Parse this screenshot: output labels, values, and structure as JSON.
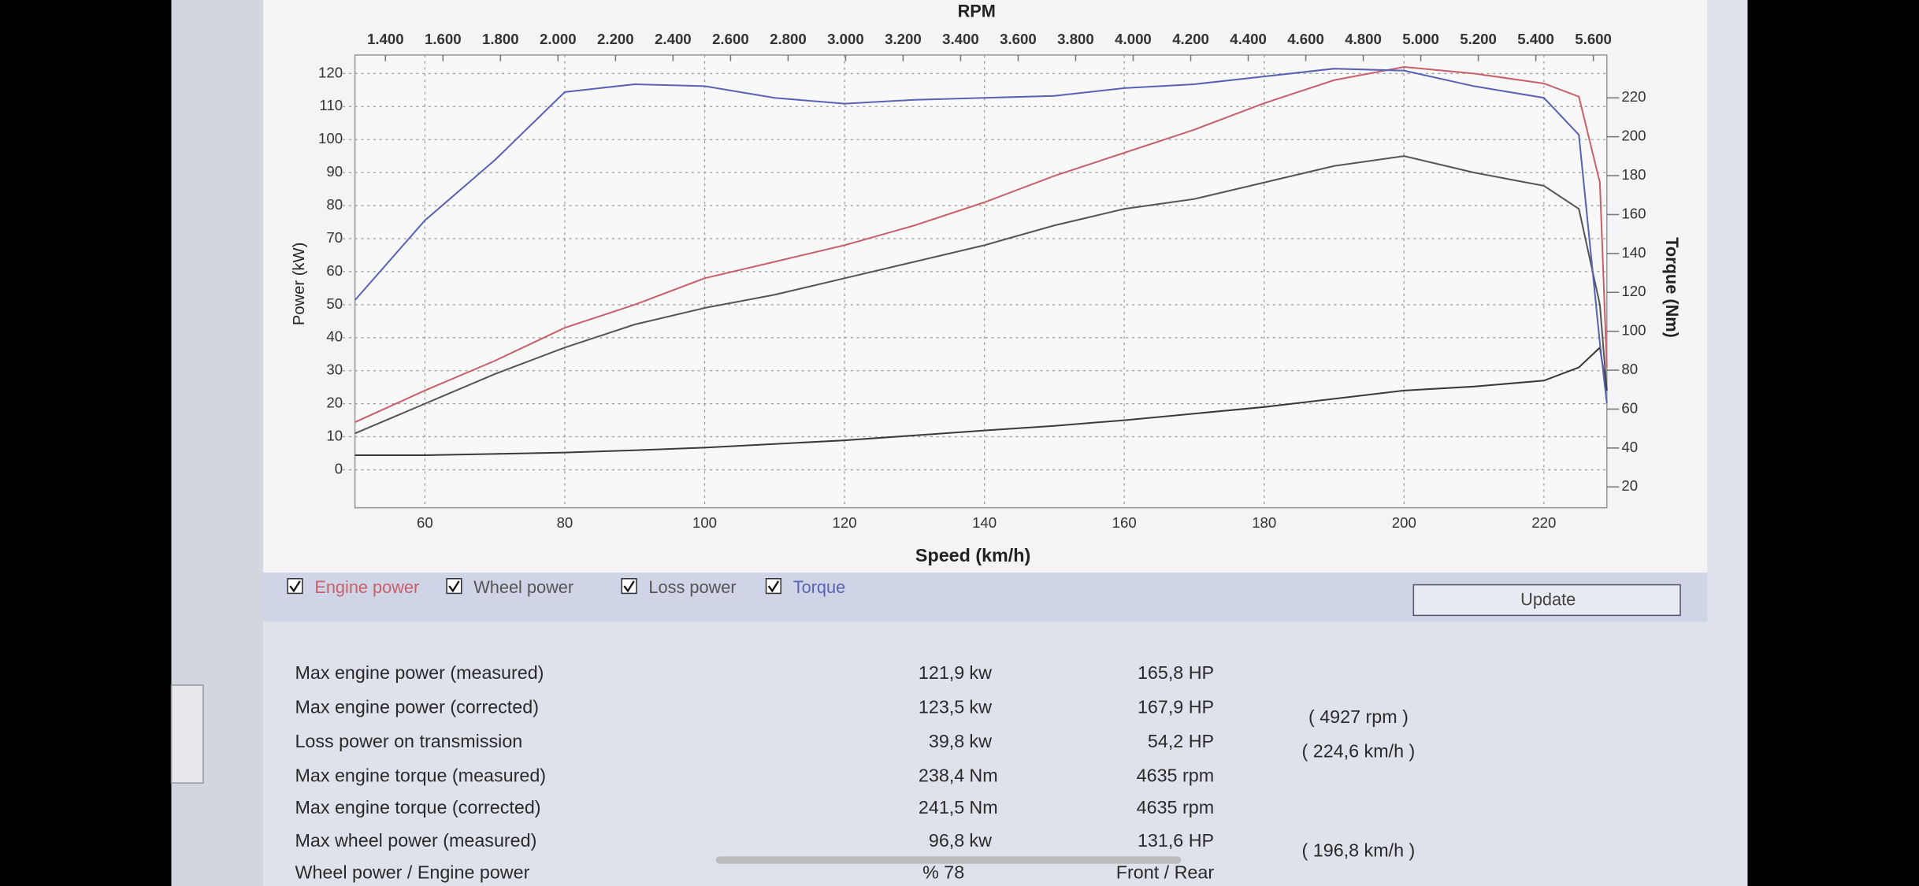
{
  "chart_data": {
    "type": "line",
    "x_label": "Speed (km/h)",
    "x2_label": "RPM",
    "y_label": "Power (kW)",
    "y2_label": "Torque (Nm)",
    "x": [
      50,
      60,
      70,
      80,
      90,
      100,
      110,
      120,
      130,
      140,
      150,
      160,
      170,
      180,
      190,
      200,
      210,
      220,
      225,
      228,
      229
    ],
    "xlim": [
      50,
      229
    ],
    "xticks": [
      60,
      80,
      100,
      120,
      140,
      160,
      180,
      200,
      220
    ],
    "x2lim": [
      1294,
      5647
    ],
    "x2ticks": [
      {
        "value": 1400,
        "label": "1.400"
      },
      {
        "value": 1600,
        "label": "1.600"
      },
      {
        "value": 1800,
        "label": "1.800"
      },
      {
        "value": 2000,
        "label": "2.000"
      },
      {
        "value": 2200,
        "label": "2.200"
      },
      {
        "value": 2400,
        "label": "2.400"
      },
      {
        "value": 2600,
        "label": "2.600"
      },
      {
        "value": 2800,
        "label": "2.800"
      },
      {
        "value": 3000,
        "label": "3.000"
      },
      {
        "value": 3200,
        "label": "3.200"
      },
      {
        "value": 3400,
        "label": "3.400"
      },
      {
        "value": 3600,
        "label": "3.600"
      },
      {
        "value": 3800,
        "label": "3.800"
      },
      {
        "value": 4000,
        "label": "4.000"
      },
      {
        "value": 4200,
        "label": "4.200"
      },
      {
        "value": 4400,
        "label": "4.400"
      },
      {
        "value": 4600,
        "label": "4.600"
      },
      {
        "value": 4800,
        "label": "4.800"
      },
      {
        "value": 5000,
        "label": "5.000"
      },
      {
        "value": 5200,
        "label": "5.200"
      },
      {
        "value": 5400,
        "label": "5.400"
      },
      {
        "value": 5600,
        "label": "5.600"
      }
    ],
    "ylim": [
      -11.5,
      125.6
    ],
    "yticks": [
      0,
      10,
      20,
      30,
      40,
      50,
      60,
      70,
      80,
      90,
      100,
      110,
      120
    ],
    "y2lim": [
      9.3,
      242
    ],
    "y2ticks": [
      20,
      40,
      60,
      80,
      100,
      120,
      140,
      160,
      180,
      200,
      220
    ],
    "grid": true,
    "series": [
      {
        "name": "Engine power",
        "color": "#c8606a",
        "values": [
          14.4,
          24,
          33,
          43,
          50,
          58,
          63,
          68,
          74,
          81,
          89,
          96,
          103,
          111,
          118,
          122,
          120,
          117,
          113,
          87,
          31
        ]
      },
      {
        "name": "Wheel power",
        "color": "#555555",
        "values": [
          11,
          20,
          29,
          37,
          44,
          49,
          53,
          58,
          63,
          68,
          74,
          79,
          82,
          87,
          92,
          95,
          90,
          86,
          79,
          50,
          24
        ]
      },
      {
        "name": "Loss power",
        "color": "#3a3a3a",
        "values": [
          4.4,
          4.4,
          4.8,
          5.2,
          5.9,
          6.7,
          7.8,
          8.9,
          10.4,
          11.9,
          13.3,
          15,
          17,
          19,
          21.5,
          24,
          25.2,
          27,
          31,
          37,
          24
        ]
      },
      {
        "name": "Torque",
        "color": "#5862b4",
        "axis": "y2",
        "values": [
          116,
          157,
          188,
          223,
          227,
          226,
          220,
          217,
          219,
          220,
          221,
          225,
          227,
          231,
          235,
          234,
          226,
          220,
          201,
          94,
          63
        ]
      }
    ]
  },
  "button": "Update",
  "table": {
    "rows": [
      {
        "label": "Max engine power (measured)",
        "value": "121,9",
        "unit": "kw",
        "hp": "165,8 HP"
      },
      {
        "label": "Max engine power (corrected)",
        "value": "123,5",
        "unit": "kw",
        "hp": "167,9 HP",
        "note": "( 4927 rpm )"
      },
      {
        "label": "Loss power on transmission",
        "value": "39,8",
        "unit": "kw",
        "hp": "54,2 HP",
        "note": "( 224,6 km/h )"
      },
      {
        "label": "Max engine torque (measured)",
        "value": "238,4",
        "unit": "Nm",
        "hp": "4635 rpm"
      },
      {
        "label": "Max engine torque (corrected)",
        "value": "241,5",
        "unit": "Nm",
        "hp": "4635 rpm"
      },
      {
        "label": "Max wheel power (measured)",
        "value": "96,8",
        "unit": "kw",
        "hp": "131,6 HP",
        "note": "( 196,8 km/h )"
      },
      {
        "label": "Wheel power / Engine power",
        "value": "% 78",
        "hp": "Front / Rear"
      }
    ]
  }
}
